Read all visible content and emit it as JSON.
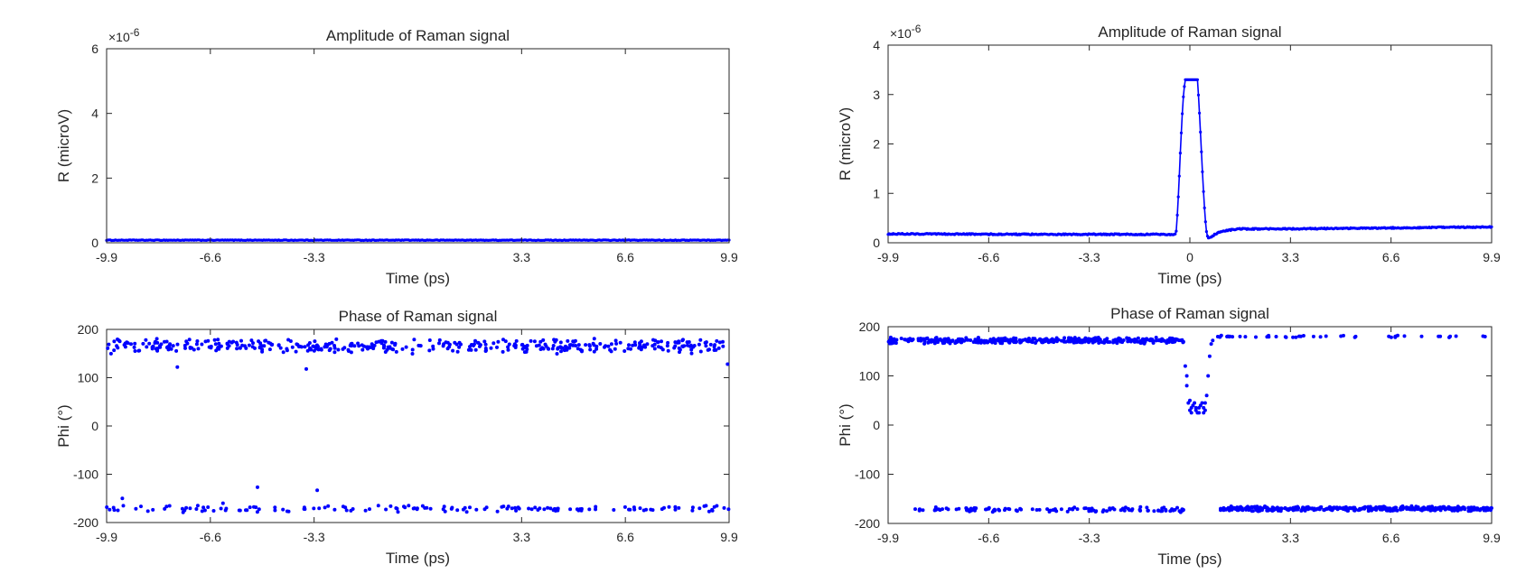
{
  "chart_data": [
    {
      "type": "scatter",
      "title": "Amplitude of Raman signal",
      "xlabel": "Time (ps)",
      "ylabel": "R (microV)",
      "exponent_label": "×10",
      "exponent_power": "-6",
      "xlim": [
        -9.9,
        9.9
      ],
      "ylim": [
        0,
        6
      ],
      "xticks": [
        "-9.9",
        "-6.6",
        "-3.3",
        "3.3",
        "6.6",
        "9.9"
      ],
      "xtick_values": [
        -9.9,
        -6.6,
        -3.3,
        3.3,
        6.6,
        9.9
      ],
      "yticks": [
        "0",
        "2",
        "4",
        "6"
      ],
      "ytick_values": [
        0,
        2,
        4,
        6
      ],
      "grid": false,
      "legend": "none",
      "color": "#0000ff",
      "series": [
        {
          "style": "line-markers",
          "segments": [
            {
              "from": -9.9,
              "to": 9.9,
              "level": 0.08,
              "noise": 0.01,
              "count": 500
            }
          ]
        }
      ]
    },
    {
      "type": "scatter",
      "title": "Amplitude of Raman signal",
      "xlabel": "Time (ps)",
      "ylabel": "R (microV)",
      "exponent_label": "×10",
      "exponent_power": "-6",
      "xlim": [
        -9.9,
        9.9
      ],
      "ylim": [
        0,
        4
      ],
      "xticks": [
        "-9.9",
        "-6.6",
        "-3.3",
        "0",
        "3.3",
        "6.6",
        "9.9"
      ],
      "xtick_values": [
        -9.9,
        -6.6,
        -3.3,
        0,
        3.3,
        6.6,
        9.9
      ],
      "yticks": [
        "0",
        "1",
        "2",
        "3",
        "4"
      ],
      "ytick_values": [
        0,
        1,
        2,
        3,
        4
      ],
      "grid": false,
      "legend": "none",
      "color": "#0000ff",
      "series": [
        {
          "style": "line-markers",
          "points": [
            [
              -9.9,
              0.18
            ],
            [
              -5.0,
              0.17
            ],
            [
              -0.5,
              0.17
            ],
            [
              -0.45,
              0.2
            ],
            [
              -0.4,
              0.7
            ],
            [
              -0.35,
              1.3
            ],
            [
              -0.3,
              2.0
            ],
            [
              -0.25,
              2.6
            ],
            [
              -0.2,
              3.1
            ],
            [
              -0.15,
              3.3
            ],
            [
              0.25,
              3.3
            ],
            [
              0.3,
              2.8
            ],
            [
              0.35,
              2.2
            ],
            [
              0.4,
              1.6
            ],
            [
              0.45,
              1.0
            ],
            [
              0.5,
              0.5
            ],
            [
              0.55,
              0.2
            ],
            [
              0.6,
              0.08
            ],
            [
              0.7,
              0.12
            ],
            [
              0.9,
              0.2
            ],
            [
              1.2,
              0.25
            ],
            [
              1.6,
              0.28
            ],
            [
              3.0,
              0.28
            ],
            [
              6.6,
              0.3
            ],
            [
              9.9,
              0.32
            ]
          ],
          "noise": 0.012,
          "count": 600
        }
      ]
    },
    {
      "type": "scatter",
      "title": "Phase of Raman signal",
      "xlabel": "Time (ps)",
      "ylabel": "Phi (°)",
      "xlim": [
        -9.9,
        9.9
      ],
      "ylim": [
        -200,
        200
      ],
      "xticks": [
        "-9.9",
        "-6.6",
        "-3.3",
        "3.3",
        "6.6",
        "9.9"
      ],
      "xtick_values": [
        -9.9,
        -6.6,
        -3.3,
        3.3,
        6.6,
        9.9
      ],
      "yticks": [
        "-200",
        "-100",
        "0",
        "100",
        "200"
      ],
      "ytick_values": [
        -200,
        -100,
        0,
        100,
        200
      ],
      "grid": false,
      "legend": "none",
      "color": "#0000ff",
      "series": [
        {
          "style": "markers",
          "clusters": [
            {
              "from": -9.9,
              "to": 9.9,
              "center": 165,
              "spread": 12,
              "count": 420
            },
            {
              "from": -9.9,
              "to": 9.9,
              "center": -172,
              "spread": 6,
              "count": 150
            }
          ],
          "points": [
            [
              -7.65,
              122
            ],
            [
              -3.55,
              118
            ],
            [
              9.85,
              128
            ],
            [
              -5.1,
              -127
            ],
            [
              -3.2,
              -133
            ],
            [
              -9.4,
              -150
            ],
            [
              -6.2,
              -160
            ]
          ]
        }
      ]
    },
    {
      "type": "scatter",
      "title": "Phase of Raman signal",
      "xlabel": "Time (ps)",
      "ylabel": "Phi (°)",
      "xlim": [
        -9.9,
        9.9
      ],
      "ylim": [
        -200,
        200
      ],
      "xticks": [
        "-9.9",
        "-6.6",
        "-3.3",
        "3.3",
        "6.6",
        "9.9"
      ],
      "xtick_values": [
        -9.9,
        -6.6,
        -3.3,
        3.3,
        6.6,
        9.9
      ],
      "yticks": [
        "-200",
        "-100",
        "0",
        "100",
        "200"
      ],
      "ytick_values": [
        -200,
        -100,
        0,
        100,
        200
      ],
      "grid": false,
      "legend": "none",
      "color": "#0000ff",
      "series": [
        {
          "style": "markers",
          "clusters": [
            {
              "from": -9.9,
              "to": -0.2,
              "center": 172,
              "spread": 5,
              "count": 380
            },
            {
              "from": 0.85,
              "to": 9.9,
              "center": 180,
              "spread": 2,
              "count": 45
            },
            {
              "from": -9.3,
              "to": -0.2,
              "center": -172,
              "spread": 4,
              "count": 120
            },
            {
              "from": 1.0,
              "to": 9.9,
              "center": -170,
              "spread": 4,
              "count": 420
            }
          ],
          "points": [
            [
              -0.15,
              120
            ],
            [
              -0.1,
              80
            ],
            [
              -0.05,
              45
            ],
            [
              0.0,
              30
            ],
            [
              0.05,
              25
            ],
            [
              0.1,
              40
            ],
            [
              0.15,
              45
            ],
            [
              0.2,
              35
            ],
            [
              0.25,
              25
            ],
            [
              0.3,
              25
            ],
            [
              0.35,
              40
            ],
            [
              0.4,
              45
            ],
            [
              0.45,
              35
            ],
            [
              0.5,
              30
            ],
            [
              0.55,
              60
            ],
            [
              0.6,
              100
            ],
            [
              0.65,
              140
            ],
            [
              0.7,
              165
            ],
            [
              0.75,
              172
            ],
            [
              -0.1,
              100
            ],
            [
              0.0,
              50
            ],
            [
              0.05,
              35
            ],
            [
              0.2,
              30
            ],
            [
              0.3,
              35
            ],
            [
              0.45,
              25
            ],
            [
              0.5,
              45
            ]
          ]
        }
      ]
    }
  ]
}
